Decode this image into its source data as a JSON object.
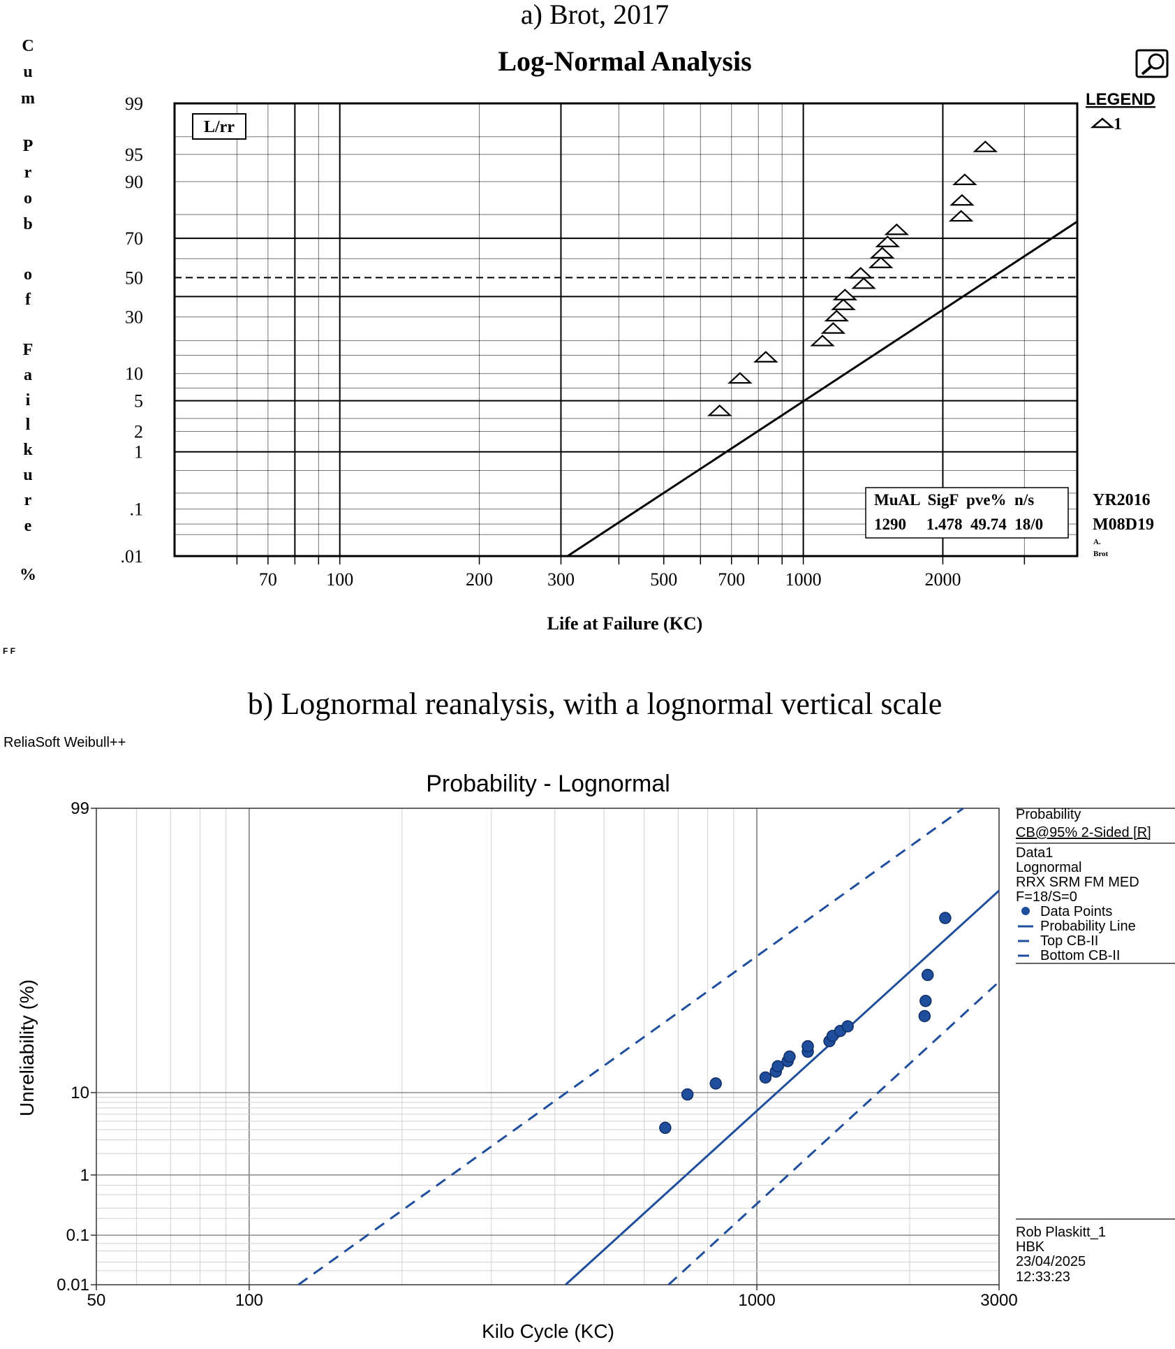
{
  "panel_a": {
    "caption": "a) Brot, 2017",
    "chart_data": {
      "type": "scatter",
      "title": "Log-Normal Analysis",
      "xlabel": "Life at Failure (KC)",
      "ylabel_letters": [
        "C",
        "u",
        "m",
        "P",
        "r",
        "o",
        "b",
        "o",
        "f",
        "F",
        "a",
        "i",
        "l",
        "k",
        "u",
        "r",
        "e",
        "%"
      ],
      "x_scale": "log",
      "y_scale": "lognormal-probability",
      "xlim": [
        44,
        3900
      ],
      "ylim": [
        0.01,
        99
      ],
      "x_ticks": [
        70,
        100,
        200,
        300,
        500,
        700,
        1000,
        2000
      ],
      "x_tick_labels": [
        "70",
        "100",
        "200",
        "300",
        "500",
        "700",
        "1000",
        "2000"
      ],
      "y_ticks": [
        99,
        95,
        90,
        70,
        50,
        30,
        10,
        5,
        2,
        1,
        0.1,
        0.01
      ],
      "y_tick_labels": [
        "99",
        "95",
        "90",
        "70",
        "50",
        "30",
        "10",
        "5",
        "2",
        "1",
        ".1",
        ".01"
      ],
      "legend_placement": "right",
      "series": [
        {
          "name": "1",
          "marker": "triangle",
          "points": [
            {
              "x": 660,
              "y": 3.8
            },
            {
              "x": 730,
              "y": 9.0
            },
            {
              "x": 830,
              "y": 14.5
            },
            {
              "x": 1100,
              "y": 20.0
            },
            {
              "x": 1160,
              "y": 25.0
            },
            {
              "x": 1180,
              "y": 30.5
            },
            {
              "x": 1220,
              "y": 36.0
            },
            {
              "x": 1230,
              "y": 41.0
            },
            {
              "x": 1350,
              "y": 47.0
            },
            {
              "x": 1330,
              "y": 52.5
            },
            {
              "x": 1470,
              "y": 58.0
            },
            {
              "x": 1480,
              "y": 63.0
            },
            {
              "x": 1520,
              "y": 68.5
            },
            {
              "x": 1590,
              "y": 74.0
            },
            {
              "x": 2190,
              "y": 79.5
            },
            {
              "x": 2200,
              "y": 85.0
            },
            {
              "x": 2230,
              "y": 90.5
            },
            {
              "x": 2470,
              "y": 96.0
            }
          ]
        }
      ],
      "fit_line": {
        "mu": 1290,
        "sigma": 1.478,
        "x_from": 310,
        "y_from": 0.01,
        "x_to": 3900
      },
      "median_line": 50
    },
    "box_label": "L/rr",
    "legend_title": "LEGEND",
    "legend_item": "1",
    "stats_header": "MuAL  SigF  pve%  n/s",
    "stats_values": "1290     1.478  49.74  18/0",
    "date_year": "YR2016",
    "date_md": "M08D19",
    "author_line1": "A.",
    "author_line2": "Brot",
    "corner_mark": "F F"
  },
  "panel_b": {
    "caption": "b) Lognormal reanalysis, with a lognormal vertical scale",
    "software": "ReliaSoft Weibull++",
    "chart_data": {
      "type": "scatter",
      "title": "Probability - Lognormal",
      "xlabel": "Kilo Cycle (KC)",
      "ylabel": "Unreliability (%)",
      "x_scale": "log",
      "y_scale": "lognormal-probability",
      "xlim": [
        50,
        3000
      ],
      "ylim": [
        0.01,
        99
      ],
      "x_ticks": [
        50,
        100,
        1000,
        3000
      ],
      "x_tick_labels": [
        "50",
        "100",
        "1000",
        "3000"
      ],
      "y_ticks": [
        99,
        10,
        1,
        0.1,
        0.01
      ],
      "y_tick_labels": [
        "99",
        "10",
        "1",
        "0.1",
        "0.01"
      ],
      "grid": true,
      "legend_placement": "right",
      "series": [
        {
          "name": "Data Points",
          "marker": "circle",
          "color": "#1f4e9c",
          "points": [
            {
              "x": 660,
              "y": 4.2
            },
            {
              "x": 730,
              "y": 9.6
            },
            {
              "x": 830,
              "y": 12.2
            },
            {
              "x": 1040,
              "y": 13.8
            },
            {
              "x": 1090,
              "y": 15.5
            },
            {
              "x": 1100,
              "y": 17.2
            },
            {
              "x": 1150,
              "y": 18.9
            },
            {
              "x": 1160,
              "y": 20.5
            },
            {
              "x": 1260,
              "y": 22.3
            },
            {
              "x": 1260,
              "y": 24.4
            },
            {
              "x": 1390,
              "y": 26.5
            },
            {
              "x": 1410,
              "y": 28.7
            },
            {
              "x": 1460,
              "y": 30.9
            },
            {
              "x": 1510,
              "y": 33.0
            },
            {
              "x": 2140,
              "y": 37.8
            },
            {
              "x": 2150,
              "y": 45.3
            },
            {
              "x": 2170,
              "y": 58.4
            },
            {
              "x": 2350,
              "y": 82.5
            }
          ]
        }
      ],
      "lines": {
        "probability": {
          "a": [
            420,
            0.01
          ],
          "b": [
            3000,
            90
          ]
        },
        "top_cb": {
          "a": [
            125,
            0.01
          ],
          "b": [
            2550,
            99
          ]
        },
        "bottom_cb": {
          "a": [
            670,
            0.01
          ],
          "b": [
            3000,
            55
          ]
        }
      }
    },
    "legend": {
      "line1": "Probability",
      "line2": "CB@95% 2-Sided [R]",
      "line3": "Data1",
      "line4": "Lognormal",
      "line5": "RRX SRM FM MED",
      "line6": "F=18/S=0",
      "item_points": "Data Points",
      "item_prob": "Probability Line",
      "item_top": "Top CB-II",
      "item_bottom": "Bottom CB-II"
    },
    "footer": {
      "line1": "Rob Plaskitt_1",
      "line2": "HBK",
      "line3": "23/04/2025",
      "line4": "12:33:23"
    },
    "colors": {
      "accent": "#1f4e9c"
    }
  }
}
